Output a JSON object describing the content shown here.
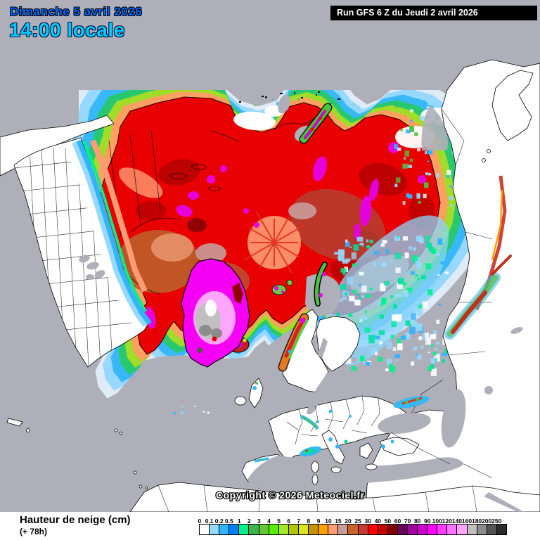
{
  "header": {
    "date_line": "Dimanche 5 avril 2026",
    "time_line": "14:00 locale",
    "run_label": "Run GFS 6 Z du Jeudi 2 avril 2026"
  },
  "map": {
    "copyright": "Copyright © 2026 Meteociel.fr",
    "sea_color": "#AFAFB9",
    "land_color": "#FFFFFF"
  },
  "footer": {
    "title": "Hauteur de neige (cm)",
    "subtitle": "(+ 78h)"
  },
  "legend": {
    "unit": "cm",
    "values": [
      "0",
      "0.1",
      "0.2",
      "0.5",
      "1",
      "2",
      "3",
      "4",
      "5",
      "6",
      "7",
      "8",
      "9",
      "10",
      "15",
      "20",
      "25",
      "30",
      "40",
      "50",
      "60",
      "70",
      "80",
      "90",
      "100",
      "120",
      "140",
      "160",
      "180",
      "200",
      "250"
    ],
    "colors": [
      "#FFFFFF",
      "#96D8FF",
      "#30B4FF",
      "#0080FF",
      "#00F08C",
      "#3CB450",
      "#64C832",
      "#58F000",
      "#A0E828",
      "#B4C400",
      "#D8E81C",
      "#C49400",
      "#FFA000",
      "#FF9C74",
      "#C89C98",
      "#C86428",
      "#C43C30",
      "#FF0000",
      "#C40000",
      "#800000",
      "#6C0060",
      "#A400A0",
      "#CC00C8",
      "#FF00FF",
      "#FF3CFF",
      "#FF74FF",
      "#FFA4FF",
      "#C0C0C0",
      "#8C8C8C",
      "#545454",
      "#2C2C2C"
    ]
  }
}
